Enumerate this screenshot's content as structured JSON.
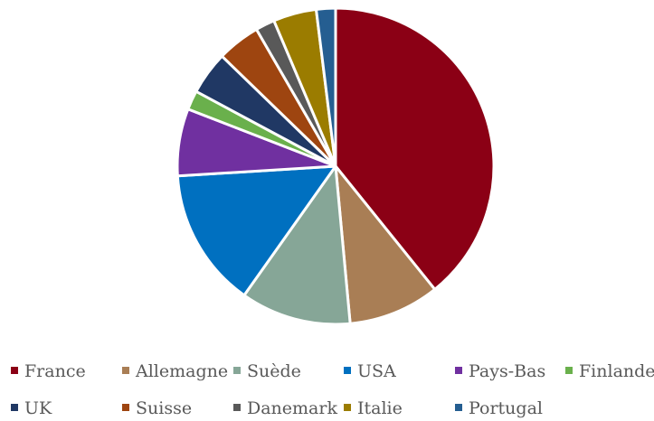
{
  "chart_data": {
    "type": "pie",
    "title": "",
    "legend_position": "bottom",
    "slices": [
      {
        "label": "France",
        "value": 40,
        "color": "#8b0015"
      },
      {
        "label": "Allemagne",
        "value": 9.5,
        "color": "#a97e55"
      },
      {
        "label": "Suède",
        "value": 11.5,
        "color": "#86a697"
      },
      {
        "label": "USA",
        "value": 14.5,
        "color": "#0070c0"
      },
      {
        "label": "Pays-Bas",
        "value": 7,
        "color": "#7030a0"
      },
      {
        "label": "Finlande",
        "value": 2,
        "color": "#6ab04c"
      },
      {
        "label": "UK",
        "value": 4.5,
        "color": "#203864"
      },
      {
        "label": "Suisse",
        "value": 4.5,
        "color": "#9e4510"
      },
      {
        "label": "Danemark",
        "value": 2,
        "color": "#595959"
      },
      {
        "label": "Italie",
        "value": 4.5,
        "color": "#9b7c00"
      },
      {
        "label": "Portugal",
        "value": 2,
        "color": "#255e91"
      }
    ]
  }
}
